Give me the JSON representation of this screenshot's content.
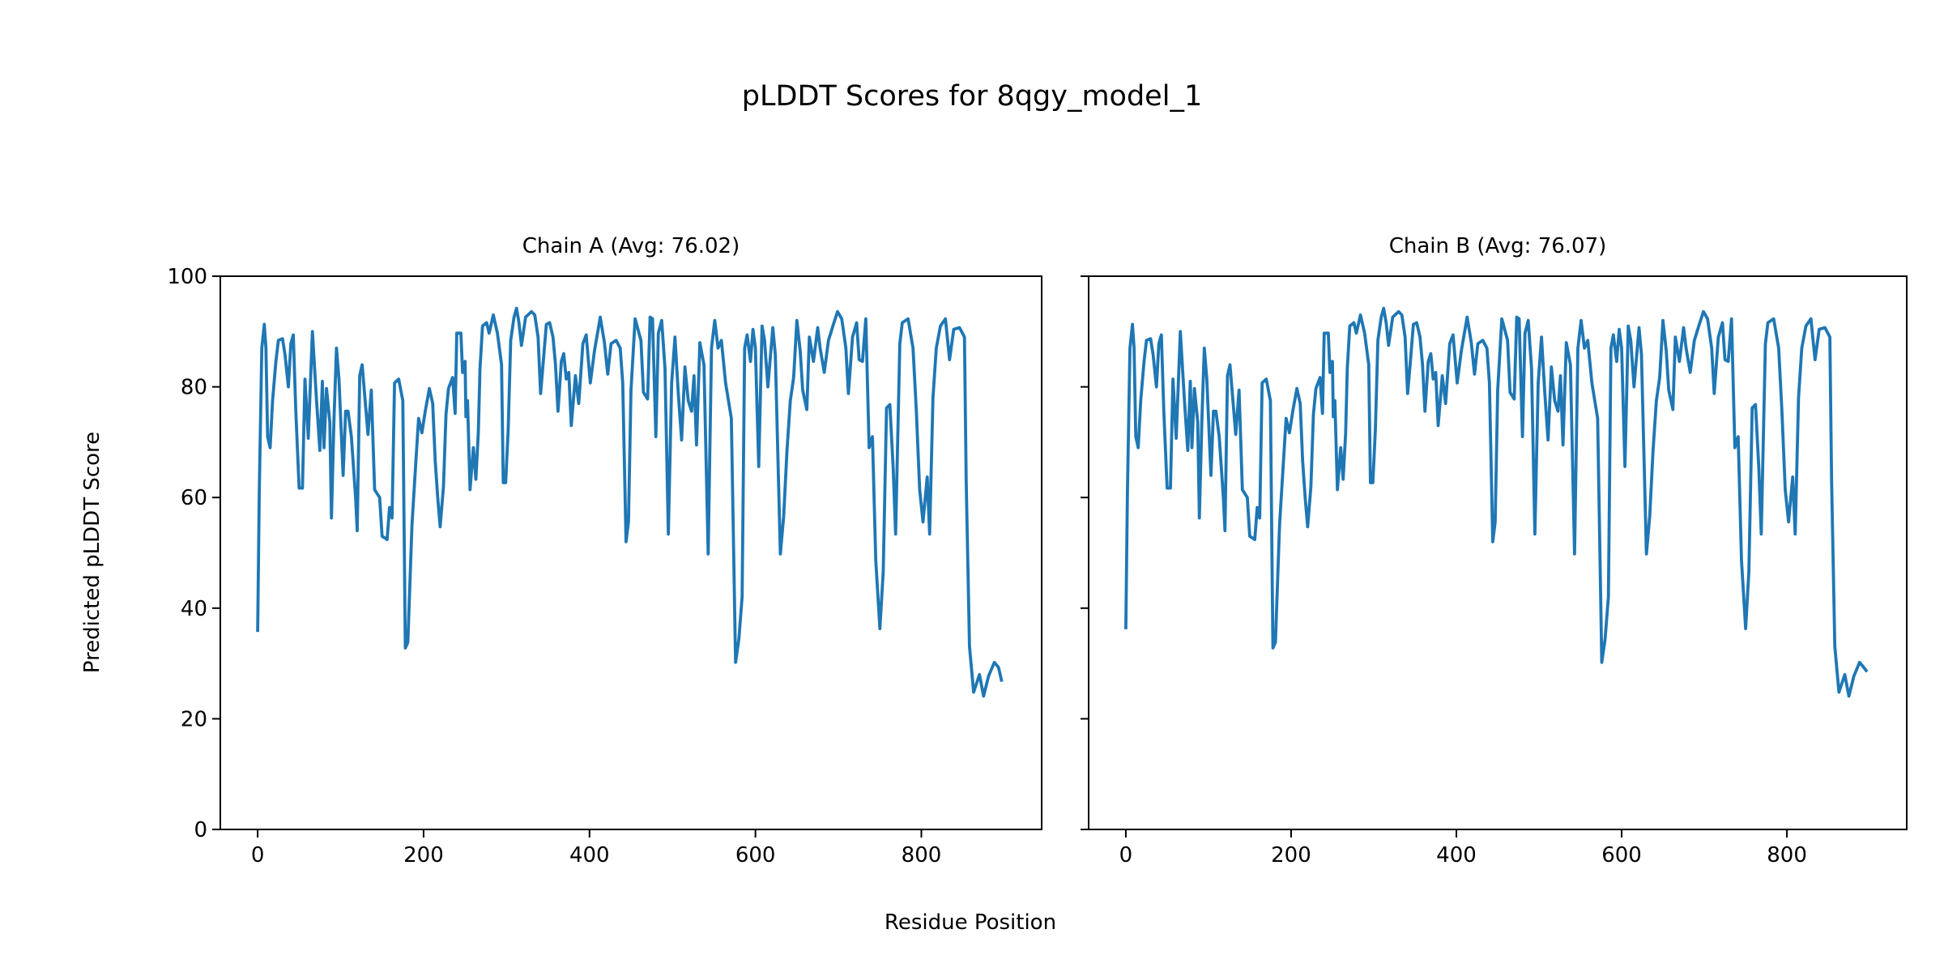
{
  "chart_data": {
    "type": "line",
    "title": "pLDDT Scores for 8qgy_model_1",
    "xlabel": "Residue Position",
    "ylabel": "Predicted pLDDT Score",
    "ylim": [
      0,
      100
    ],
    "xlim": [
      -45,
      945
    ],
    "yticks": [
      0,
      20,
      40,
      60,
      80,
      100
    ],
    "xticks": [
      0,
      200,
      400,
      600,
      800
    ],
    "line_color": "#1f77b4",
    "grid": false,
    "panels": [
      {
        "title": "Chain A (Avg: 76.02)",
        "x": [
          0,
          2,
          5,
          8,
          10,
          12,
          15,
          18,
          22,
          25,
          30,
          33,
          37,
          40,
          43,
          46,
          50,
          54,
          57,
          61,
          66,
          71,
          75,
          78,
          80,
          83,
          87,
          89,
          92,
          95,
          98,
          103,
          106,
          109,
          113,
          118,
          120,
          123,
          126,
          133,
          137,
          141,
          147,
          150,
          156,
          159,
          162,
          165,
          170,
          175,
          178,
          181,
          186,
          191,
          194,
          198,
          202,
          207,
          211,
          214,
          217,
          220,
          224,
          227,
          230,
          235,
          238,
          240,
          245,
          247,
          250,
          251,
          253,
          256,
          260,
          263,
          266,
          268,
          271,
          276,
          279,
          284,
          289,
          294,
          296,
          299,
          302,
          305,
          309,
          312,
          315,
          318,
          323,
          330,
          334,
          338,
          341,
          344,
          348,
          352,
          356,
          359,
          362,
          366,
          369,
          372,
          375,
          378,
          383,
          387,
          392,
          396,
          401,
          406,
          413,
          418,
          422,
          426,
          432,
          437,
          440,
          444,
          447,
          450,
          455,
          462,
          465,
          470,
          473,
          476,
          480,
          483,
          487,
          491,
          495,
          499,
          503,
          507,
          511,
          515,
          519,
          523,
          526,
          529,
          533,
          538,
          543,
          547,
          551,
          555,
          559,
          564,
          571,
          576,
          580,
          584,
          587,
          590,
          594,
          597,
          600,
          604,
          608,
          611,
          615,
          621,
          624,
          630,
          634,
          638,
          642,
          646,
          650,
          654,
          657,
          662,
          665,
          670,
          675,
          678,
          683,
          688,
          694,
          699,
          704,
          709,
          712,
          717,
          722,
          725,
          729,
          733,
          737,
          741,
          745,
          750,
          754,
          758,
          762,
          766,
          769,
          774,
          777,
          784,
          790,
          794,
          798,
          802,
          807,
          810,
          814,
          818,
          823,
          829,
          834,
          839,
          846,
          852,
          854,
          858,
          863,
          870,
          875,
          881,
          888,
          893,
          897
        ],
        "y": [
          35.7,
          61,
          87,
          91.3,
          87,
          71,
          69,
          77.5,
          84.6,
          88.4,
          88.7,
          85.8,
          80,
          87.8,
          89.4,
          75.6,
          61.7,
          61.7,
          81.4,
          70.7,
          90,
          77.5,
          68.5,
          81,
          69,
          79.7,
          73.6,
          56.3,
          74,
          87,
          81.4,
          64,
          75.6,
          75.6,
          71,
          60,
          54,
          82,
          84,
          71.4,
          79.4,
          61.4,
          60,
          53,
          52.4,
          58.2,
          56.3,
          80.7,
          81.4,
          77.5,
          32.8,
          33.8,
          55,
          67.2,
          74.3,
          71.7,
          75.6,
          79.7,
          77,
          66.6,
          60,
          54.7,
          62,
          75,
          79.7,
          81.7,
          75.2,
          89.7,
          89.7,
          82.6,
          84.6,
          74.6,
          77.5,
          61.4,
          69,
          63.3,
          71.7,
          83.3,
          91,
          91.6,
          89.7,
          93,
          89.7,
          84,
          62.7,
          62.7,
          72.3,
          88.4,
          92.6,
          94.2,
          91.6,
          87.5,
          92.6,
          93.6,
          93,
          89,
          78.8,
          84,
          91.3,
          91.6,
          89,
          84,
          75.6,
          84.6,
          86,
          81.4,
          82.6,
          73,
          82,
          77,
          87.8,
          89.4,
          80.7,
          86.5,
          92.6,
          88,
          82.3,
          87.8,
          88.4,
          87,
          80.7,
          52,
          55.6,
          79.4,
          92.3,
          88.4,
          79,
          77.8,
          92.6,
          92.3,
          71,
          89.7,
          92,
          83.3,
          53.4,
          80.7,
          89,
          78.8,
          70.4,
          83.6,
          77.5,
          75.6,
          82,
          69.5,
          88,
          84,
          49.8,
          87,
          92,
          87,
          88.4,
          80.7,
          74.3,
          30.2,
          34.4,
          42.1,
          87,
          89.4,
          84.6,
          90.4,
          87,
          65.6,
          91,
          88.4,
          80,
          90.7,
          85.8,
          49.8,
          56.6,
          68.5,
          77.5,
          81.7,
          92,
          86.5,
          79.4,
          75.9,
          89,
          84.6,
          90.7,
          87,
          82.6,
          88.4,
          91.3,
          93.6,
          92.3,
          87,
          78.8,
          89,
          91.6,
          84.9,
          84.6,
          92.3,
          69,
          71,
          48.6,
          36.3,
          46.6,
          76.2,
          76.8,
          65.3,
          53.4,
          87.8,
          91.6,
          92.3,
          87,
          75.6,
          61.4,
          55.6,
          63.7,
          53.4,
          78,
          87,
          91,
          92.3,
          84.9,
          90.4,
          90.7,
          89,
          63.3,
          33.1,
          24.8,
          28,
          24.1,
          27.7,
          30.2,
          29.3,
          26.7
        ]
      },
      {
        "title": "Chain B (Avg: 76.07)",
        "x": [
          0,
          2,
          5,
          8,
          10,
          12,
          15,
          18,
          22,
          25,
          30,
          33,
          37,
          40,
          43,
          46,
          50,
          54,
          57,
          61,
          66,
          71,
          75,
          78,
          80,
          83,
          87,
          89,
          92,
          95,
          98,
          103,
          106,
          109,
          113,
          118,
          120,
          123,
          126,
          133,
          137,
          141,
          147,
          150,
          156,
          159,
          162,
          165,
          170,
          175,
          178,
          181,
          186,
          191,
          194,
          198,
          202,
          207,
          211,
          214,
          217,
          220,
          224,
          227,
          230,
          235,
          238,
          240,
          245,
          247,
          250,
          251,
          253,
          256,
          260,
          263,
          266,
          268,
          271,
          276,
          279,
          284,
          289,
          294,
          296,
          299,
          302,
          305,
          309,
          312,
          315,
          318,
          323,
          330,
          334,
          338,
          341,
          344,
          348,
          352,
          356,
          359,
          362,
          366,
          369,
          372,
          375,
          378,
          383,
          387,
          392,
          396,
          401,
          406,
          413,
          418,
          422,
          426,
          432,
          437,
          440,
          444,
          447,
          450,
          455,
          462,
          465,
          470,
          473,
          476,
          480,
          483,
          487,
          491,
          495,
          499,
          503,
          507,
          511,
          515,
          519,
          523,
          526,
          529,
          533,
          538,
          543,
          547,
          551,
          555,
          559,
          564,
          571,
          576,
          580,
          584,
          587,
          590,
          594,
          597,
          600,
          604,
          608,
          611,
          615,
          621,
          624,
          630,
          634,
          638,
          642,
          646,
          650,
          654,
          657,
          662,
          665,
          670,
          675,
          678,
          683,
          688,
          694,
          699,
          704,
          709,
          712,
          717,
          722,
          725,
          729,
          733,
          737,
          741,
          745,
          750,
          754,
          758,
          762,
          766,
          769,
          774,
          777,
          784,
          790,
          794,
          798,
          802,
          807,
          810,
          814,
          818,
          823,
          829,
          834,
          839,
          846,
          852,
          854,
          858,
          863,
          870,
          875,
          881,
          888,
          893,
          897
        ],
        "y": [
          36.2,
          61,
          87,
          91.3,
          87,
          71,
          69,
          77.5,
          84.6,
          88.4,
          88.7,
          85.8,
          80,
          87.8,
          89.4,
          75.6,
          61.7,
          61.7,
          81.4,
          70.7,
          90,
          77.5,
          68.5,
          81,
          69,
          79.7,
          73.6,
          56.3,
          74,
          87,
          81.4,
          64,
          75.6,
          75.6,
          71,
          60,
          54,
          82,
          84,
          71.4,
          79.4,
          61.4,
          60,
          53,
          52.4,
          58.2,
          56.3,
          80.7,
          81.4,
          77.5,
          32.8,
          33.8,
          55,
          67.2,
          74.3,
          71.7,
          75.6,
          79.7,
          77,
          66.6,
          60,
          54.7,
          62,
          75,
          79.7,
          81.7,
          75.2,
          89.7,
          89.7,
          82.6,
          84.6,
          74.6,
          77.5,
          61.4,
          69,
          63.3,
          71.7,
          83.3,
          91,
          91.6,
          89.7,
          93,
          89.7,
          84,
          62.7,
          62.7,
          72.3,
          88.4,
          92.6,
          94.2,
          91.6,
          87.5,
          92.6,
          93.6,
          93,
          89,
          78.8,
          84,
          91.3,
          91.6,
          89,
          84,
          75.6,
          84.6,
          86,
          81.4,
          82.6,
          73,
          82,
          77,
          87.8,
          89.4,
          80.7,
          86.5,
          92.6,
          88,
          82.3,
          87.8,
          88.4,
          87,
          80.7,
          52,
          55.6,
          79.4,
          92.3,
          88.4,
          79,
          77.8,
          92.6,
          92.3,
          71,
          89.7,
          92,
          83.3,
          53.4,
          80.7,
          89,
          78.8,
          70.4,
          83.6,
          77.5,
          75.6,
          82,
          69.5,
          88,
          84,
          49.8,
          87,
          92,
          87,
          88.4,
          80.7,
          74.3,
          30.2,
          34.4,
          42.1,
          87,
          89.4,
          84.6,
          90.4,
          87,
          65.6,
          91,
          88.4,
          80,
          90.7,
          85.8,
          49.8,
          56.6,
          68.5,
          77.5,
          81.7,
          92,
          86.5,
          79.4,
          75.9,
          89,
          84.6,
          90.7,
          87,
          82.6,
          88.4,
          91.3,
          93.6,
          92.3,
          87,
          78.8,
          89,
          91.6,
          84.9,
          84.6,
          92.3,
          69,
          71,
          48.6,
          36.3,
          46.6,
          76.2,
          76.8,
          65.3,
          53.4,
          87.8,
          91.6,
          92.3,
          87,
          75.6,
          61.4,
          55.6,
          63.7,
          53.4,
          78,
          87,
          91,
          92.3,
          84.9,
          90.4,
          90.7,
          89,
          63.3,
          33.1,
          24.8,
          28,
          24.1,
          27.7,
          30.2,
          29.3,
          28.5
        ]
      }
    ]
  }
}
